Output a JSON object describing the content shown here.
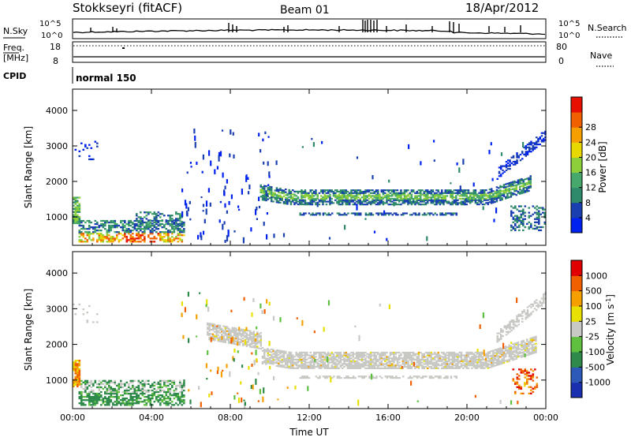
{
  "header": {
    "station": "Stokkseyri (fitACF)",
    "beam": "Beam 01",
    "date": "18/Apr/2012"
  },
  "housekeeping": {
    "nsky_label": "N.Sky",
    "nsearch_label": "N.Search",
    "freq_label_1": "Freq.",
    "freq_label_2": "[MHz]",
    "nave_label": "Nave",
    "cpid_label": "CPID",
    "cpid_value": "normal 150",
    "noise_ticks": [
      "10^5",
      "10^0"
    ],
    "freq_ticks": [
      "18",
      "8"
    ],
    "nave_ticks": [
      "80",
      "0"
    ]
  },
  "chart_data": [
    {
      "type": "heatmap",
      "panel": "power",
      "xlabel": "",
      "ylabel": "Slant Range [km]",
      "xlim": [
        0,
        24
      ],
      "ylim": [
        200,
        4600
      ],
      "yticks": [
        1000,
        2000,
        3000,
        4000
      ],
      "xticks": [
        "00:00",
        "04:00",
        "08:00",
        "12:00",
        "16:00",
        "20:00",
        "00:00"
      ],
      "colorbar": {
        "label": "Power [dB]",
        "ticks": [
          "4",
          "8",
          "12",
          "16",
          "20",
          "24",
          "28"
        ],
        "colors": [
          "#0022ee",
          "#1a3fb0",
          "#2e8a6a",
          "#46a86a",
          "#8ccf3a",
          "#e8d800",
          "#f5a000",
          "#f06000",
          "#e81000"
        ]
      }
    },
    {
      "type": "heatmap",
      "panel": "velocity",
      "xlabel": "Time UT",
      "ylabel": "Slant Range [km]",
      "xlim": [
        0,
        24
      ],
      "ylim": [
        200,
        4600
      ],
      "yticks": [
        1000,
        2000,
        3000,
        4000
      ],
      "xticks": [
        "00:00",
        "04:00",
        "08:00",
        "12:00",
        "16:00",
        "20:00",
        "00:00"
      ],
      "colorbar": {
        "label": "Velocity [m s",
        "label_sup": "-1",
        "label_end": "]",
        "ticks": [
          "1000",
          "500",
          "100",
          "25",
          "-25",
          "-100",
          "-500",
          "-1000"
        ],
        "colors": [
          "#1a2fb0",
          "#2d5ab8",
          "#2e8a4a",
          "#5fc040",
          "#c8c8c4",
          "#e8e000",
          "#f5a000",
          "#f06000",
          "#e00000"
        ]
      }
    }
  ]
}
